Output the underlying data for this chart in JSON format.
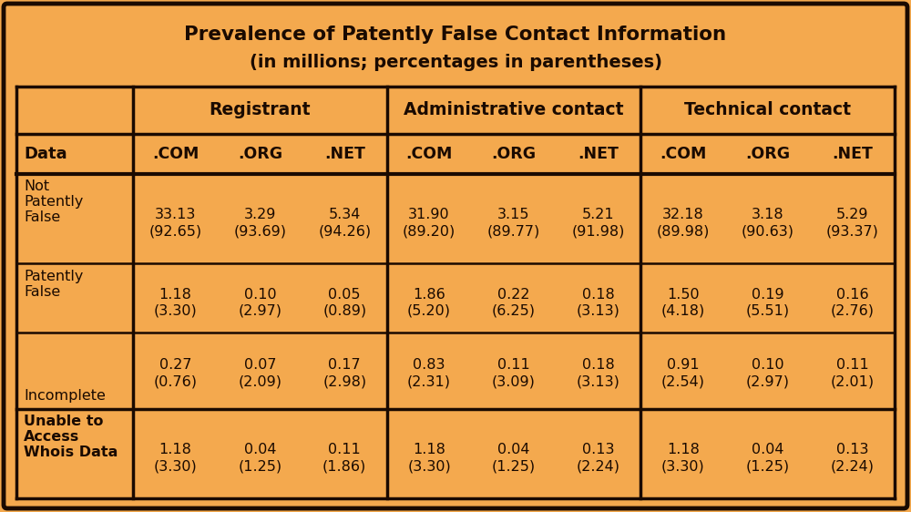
{
  "title_line1": "Prevalence of Patently False Contact Information",
  "title_line2": "(in millions; percentages in parentheses)",
  "background_color": "#F4A94E",
  "border_color": "#1A0A00",
  "text_color": "#1A0A00",
  "col_headers": [
    "Data",
    ".COM",
    ".ORG",
    ".NET",
    ".COM",
    ".ORG",
    ".NET",
    ".COM",
    ".ORG",
    ".NET"
  ],
  "group_headers": [
    {
      "label": "Registrant",
      "span": [
        1,
        3
      ]
    },
    {
      "label": "Administrative contact",
      "span": [
        4,
        6
      ]
    },
    {
      "label": "Technical contact",
      "span": [
        7,
        9
      ]
    }
  ],
  "rows": [
    {
      "label": [
        "Not",
        "Patently",
        "False"
      ],
      "label_bold": false,
      "values": [
        [
          "33.13",
          "(92.65)"
        ],
        [
          "3.29",
          "(93.69)"
        ],
        [
          "5.34",
          "(94.26)"
        ],
        [
          "31.90",
          "(89.20)"
        ],
        [
          "3.15",
          "(89.77)"
        ],
        [
          "5.21",
          "(91.98)"
        ],
        [
          "32.18",
          "(89.98)"
        ],
        [
          "3.18",
          "(90.63)"
        ],
        [
          "5.29",
          "(93.37)"
        ]
      ]
    },
    {
      "label": [
        "Patently",
        "False"
      ],
      "label_bold": false,
      "values": [
        [
          "1.18",
          "(3.30)"
        ],
        [
          "0.10",
          "(2.97)"
        ],
        [
          "0.05",
          "(0.89)"
        ],
        [
          "1.86",
          "(5.20)"
        ],
        [
          "0.22",
          "(6.25)"
        ],
        [
          "0.18",
          "(3.13)"
        ],
        [
          "1.50",
          "(4.18)"
        ],
        [
          "0.19",
          "(5.51)"
        ],
        [
          "0.16",
          "(2.76)"
        ]
      ]
    },
    {
      "label": [
        "",
        "",
        "Incomplete"
      ],
      "label_bold": false,
      "values": [
        [
          "0.27",
          "(0.76)"
        ],
        [
          "0.07",
          "(2.09)"
        ],
        [
          "0.17",
          "(2.98)"
        ],
        [
          "0.83",
          "(2.31)"
        ],
        [
          "0.11",
          "(3.09)"
        ],
        [
          "0.18",
          "(3.13)"
        ],
        [
          "0.91",
          "(2.54)"
        ],
        [
          "0.10",
          "(2.97)"
        ],
        [
          "0.11",
          "(2.01)"
        ]
      ]
    },
    {
      "label": [
        "Unable to",
        "Access",
        "Whois Data"
      ],
      "label_bold": true,
      "values": [
        [
          "1.18",
          "(3.30)"
        ],
        [
          "0.04",
          "(1.25)"
        ],
        [
          "0.11",
          "(1.86)"
        ],
        [
          "1.18",
          "(3.30)"
        ],
        [
          "0.04",
          "(1.25)"
        ],
        [
          "0.13",
          "(2.24)"
        ],
        [
          "1.18",
          "(3.30)"
        ],
        [
          "0.04",
          "(1.25)"
        ],
        [
          "0.13",
          "(2.24)"
        ]
      ]
    }
  ],
  "figsize": [
    10.0,
    5.62
  ],
  "dpi": 100
}
